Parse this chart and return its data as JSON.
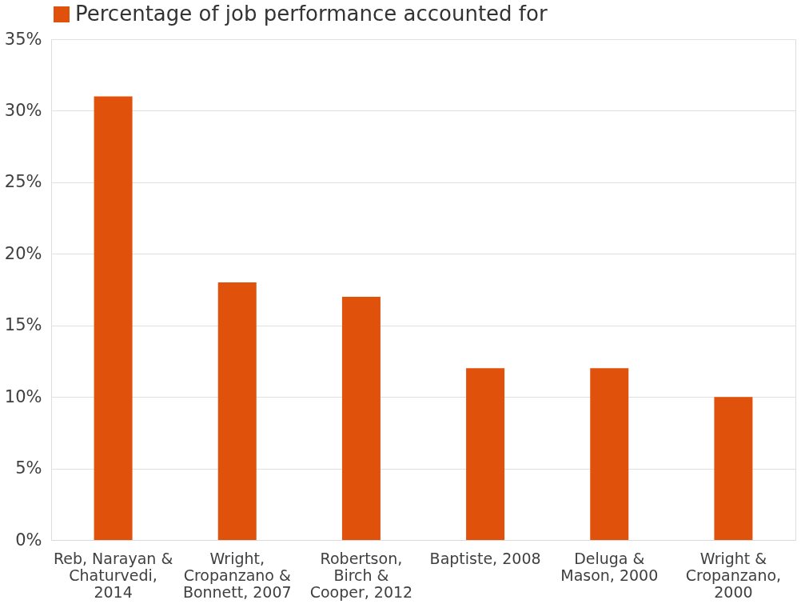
{
  "chart_data": {
    "type": "bar",
    "categories": [
      "Reb, Narayan & Chaturvedi, 2014",
      "Wright, Cropanzano & Bonnett, 2007",
      "Robertson, Birch & Cooper, 2012",
      "Baptiste, 2008",
      "Deluga & Mason, 2000",
      "Wright & Cropanzano, 2000"
    ],
    "series": [
      {
        "name": "Percentage of job performance accounted for",
        "color": "#e0520b",
        "values": [
          31,
          18,
          17,
          12,
          12,
          10
        ]
      }
    ],
    "ylim": [
      0,
      35
    ],
    "yticks": [
      {
        "value": 0,
        "label": "0%"
      },
      {
        "value": 5,
        "label": "5%"
      },
      {
        "value": 10,
        "label": "10%"
      },
      {
        "value": 15,
        "label": "15%"
      },
      {
        "value": 20,
        "label": "20%"
      },
      {
        "value": 25,
        "label": "25%"
      },
      {
        "value": 30,
        "label": "30%"
      },
      {
        "value": 35,
        "label": "35%"
      }
    ],
    "grid": "y",
    "legend": "top"
  }
}
